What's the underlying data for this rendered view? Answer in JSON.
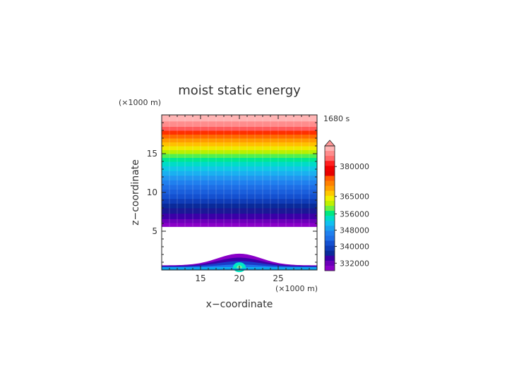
{
  "chart_data": {
    "type": "heatmap",
    "title": "moist static energy",
    "xlabel": "x−coordinate",
    "ylabel": "z−coordinate",
    "x_unit": "(×1000 m)",
    "y_unit": "(×1000 m)",
    "time_label": "1680 s",
    "xlim": [
      10,
      30
    ],
    "ylim": [
      0,
      20
    ],
    "x_ticks": [
      {
        "value": 15,
        "label": "15"
      },
      {
        "value": 20,
        "label": "20"
      },
      {
        "value": 25,
        "label": "25"
      }
    ],
    "y_ticks": [
      {
        "value": 5,
        "label": "5"
      },
      {
        "value": 10,
        "label": "10"
      },
      {
        "value": 15,
        "label": "15"
      }
    ],
    "upper_field_base_km": 5.6,
    "mountain": {
      "center_km": 20,
      "peak_km": 2.1,
      "base_km": 0.6,
      "halfwidth_km": 5
    },
    "layers_upper": [
      {
        "z0": 5.6,
        "z1": 6.1,
        "color": "#8a00c8"
      },
      {
        "z0": 6.1,
        "z1": 6.6,
        "color": "#6a00b8"
      },
      {
        "z0": 6.6,
        "z1": 7.3,
        "color": "#3c00a8"
      },
      {
        "z0": 7.3,
        "z1": 8.0,
        "color": "#1a1896"
      },
      {
        "z0": 8.0,
        "z1": 8.6,
        "color": "#0a2a9a"
      },
      {
        "z0": 8.6,
        "z1": 9.2,
        "color": "#0f3cb8"
      },
      {
        "z0": 9.2,
        "z1": 9.8,
        "color": "#1450d0"
      },
      {
        "z0": 9.8,
        "z1": 10.4,
        "color": "#1a5fdc"
      },
      {
        "z0": 10.4,
        "z1": 11.0,
        "color": "#1e6ee6"
      },
      {
        "z0": 11.0,
        "z1": 11.6,
        "color": "#2080ee"
      },
      {
        "z0": 11.6,
        "z1": 12.2,
        "color": "#2196f0"
      },
      {
        "z0": 12.2,
        "z1": 12.8,
        "color": "#1ab0f0"
      },
      {
        "z0": 12.8,
        "z1": 13.4,
        "color": "#10c8e6"
      },
      {
        "z0": 13.4,
        "z1": 14.0,
        "color": "#00dcc8"
      },
      {
        "z0": 14.0,
        "z1": 14.5,
        "color": "#00e890"
      },
      {
        "z0": 14.5,
        "z1": 15.0,
        "color": "#50f050"
      },
      {
        "z0": 15.0,
        "z1": 15.5,
        "color": "#b8f000"
      },
      {
        "z0": 15.5,
        "z1": 16.0,
        "color": "#f0e800"
      },
      {
        "z0": 16.0,
        "z1": 16.5,
        "color": "#ffc000"
      },
      {
        "z0": 16.5,
        "z1": 17.0,
        "color": "#ff9a00"
      },
      {
        "z0": 17.0,
        "z1": 17.5,
        "color": "#ff6a00"
      },
      {
        "z0": 17.5,
        "z1": 18.0,
        "color": "#ff3000"
      },
      {
        "z0": 18.0,
        "z1": 18.5,
        "color": "#ff5a5a"
      },
      {
        "z0": 18.5,
        "z1": 19.2,
        "color": "#ff8c8c"
      },
      {
        "z0": 19.2,
        "z1": 20.0,
        "color": "#ffb4b4"
      }
    ],
    "colorbar": {
      "labels": [
        {
          "value": 380000,
          "label": "380000",
          "pos": 0.165
        },
        {
          "value": 365000,
          "label": "365000",
          "pos": 0.405
        },
        {
          "value": 356000,
          "label": "356000",
          "pos": 0.545
        },
        {
          "value": 348000,
          "label": "348000",
          "pos": 0.675
        },
        {
          "value": 340000,
          "label": "340000",
          "pos": 0.805
        },
        {
          "value": 332000,
          "label": "332000",
          "pos": 0.94
        }
      ],
      "extend_color": "#ff9696",
      "colors": [
        "#ffb4b4",
        "#ff8c8c",
        "#ff6a6a",
        "#ff2020",
        "#f00000",
        "#e60000",
        "#ff5a00",
        "#ff8000",
        "#ffa000",
        "#ffc800",
        "#f0f000",
        "#c0f000",
        "#70f040",
        "#00e880",
        "#00dcc8",
        "#10c0f0",
        "#1aa0f0",
        "#2080ee",
        "#1e6ee6",
        "#1450d0",
        "#0f3cb8",
        "#0a2a9a",
        "#3c00a8",
        "#6a00b8",
        "#8a00c8"
      ]
    }
  }
}
